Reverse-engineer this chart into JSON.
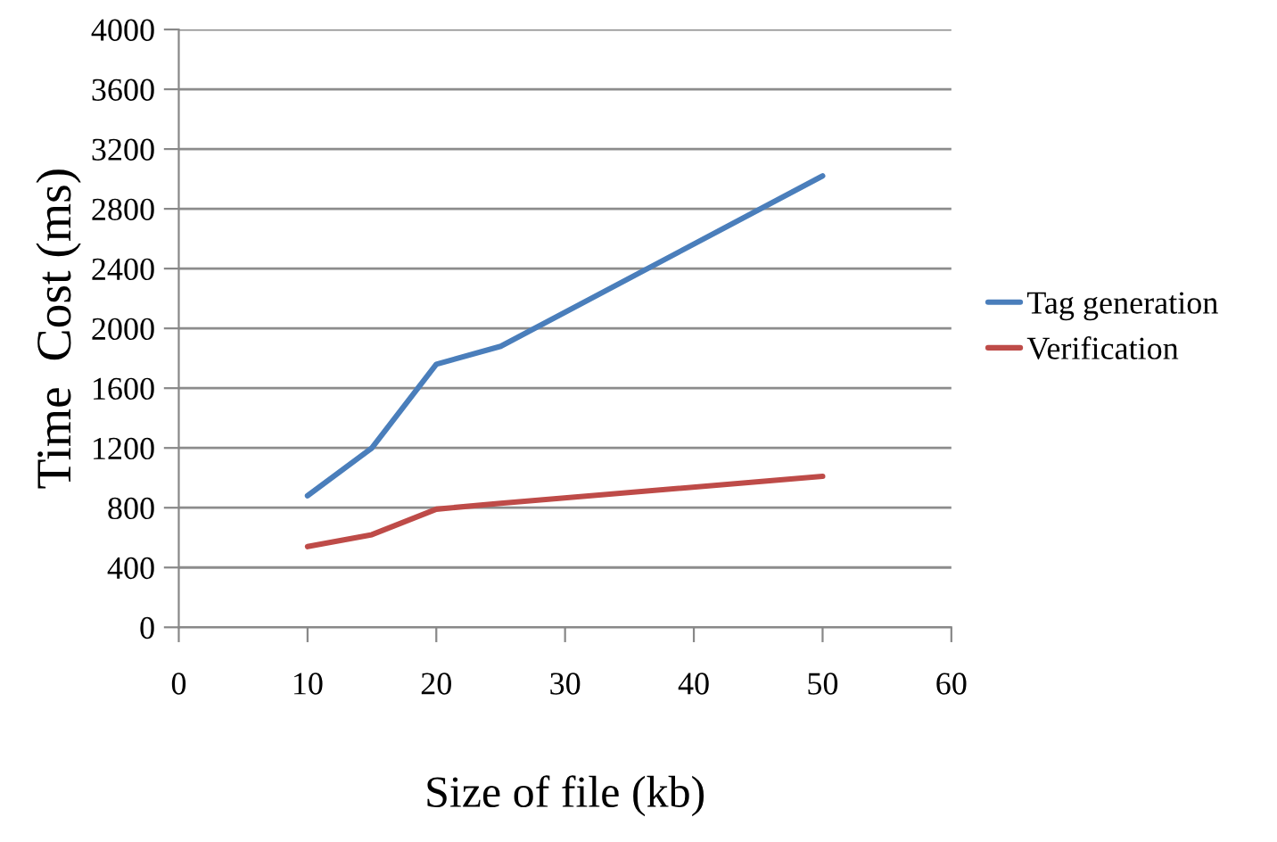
{
  "chart_data": {
    "type": "line",
    "xlabel": "Size of file (kb)",
    "ylabel": "Time  Cost (ms)",
    "x": [
      10,
      15,
      20,
      25,
      50
    ],
    "series": [
      {
        "name": "Tag generation",
        "color": "#4a7ebb",
        "values": [
          880,
          1200,
          1760,
          1880,
          3020
        ]
      },
      {
        "name": "Verification",
        "color": "#be4b48",
        "values": [
          540,
          620,
          790,
          830,
          1010
        ]
      }
    ],
    "xlim": [
      0,
      60
    ],
    "xticks": [
      0,
      10,
      20,
      30,
      40,
      50,
      60
    ],
    "ylim": [
      0,
      4000
    ],
    "yticks": [
      0,
      400,
      800,
      1200,
      1600,
      2000,
      2400,
      2800,
      3200,
      3600,
      4000
    ],
    "grid": "y",
    "legend": "right",
    "marker": "none",
    "line_style": "solid"
  }
}
